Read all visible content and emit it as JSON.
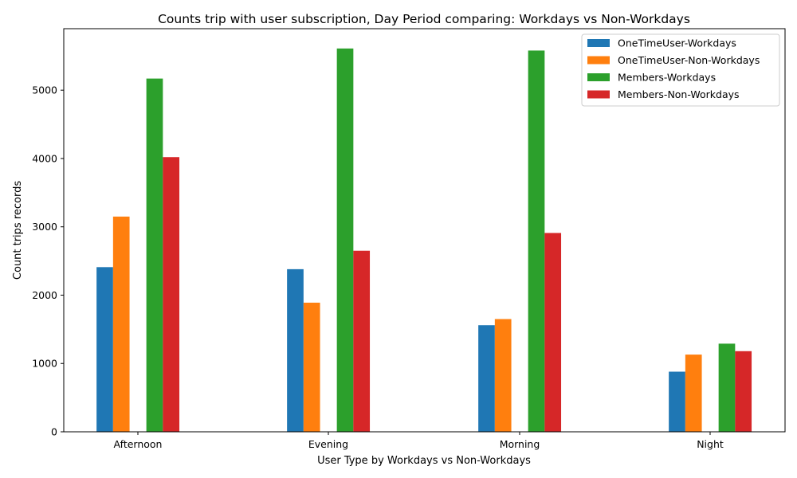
{
  "chart_data": {
    "type": "bar",
    "title": "Counts trip with user subscription, Day Period comparing: Workdays vs Non-Workdays",
    "xlabel": "User Type by Workdays vs Non-Workdays",
    "ylabel": "Count trips records",
    "categories": [
      "Afternoon",
      "Evening",
      "Morning",
      "Night"
    ],
    "ylim": [
      0,
      5900
    ],
    "yticks": [
      0,
      1000,
      2000,
      3000,
      4000,
      5000
    ],
    "grid": false,
    "legend_position": "top-right",
    "series": [
      {
        "name": "OneTimeUser-Workdays",
        "color": "#1f77b4",
        "values": [
          2410,
          2380,
          1560,
          880
        ]
      },
      {
        "name": "OneTimeUser-Non-Workdays",
        "color": "#ff7f0e",
        "values": [
          3150,
          1890,
          1650,
          1130
        ]
      },
      {
        "name": "Members-Workdays",
        "color": "#2ca02c",
        "values": [
          5170,
          5610,
          5580,
          1290
        ]
      },
      {
        "name": "Members-Non-Workdays",
        "color": "#d62728",
        "values": [
          4020,
          2650,
          2910,
          1180
        ]
      }
    ]
  }
}
